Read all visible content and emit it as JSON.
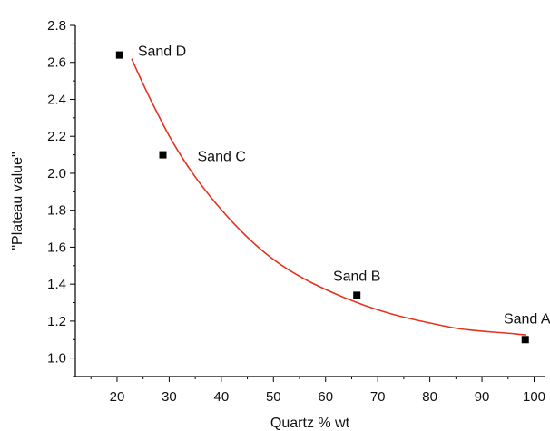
{
  "chart_data": {
    "type": "scatter",
    "title": "",
    "xlabel": "Quartz % wt",
    "ylabel": "\"Plateau value\"",
    "xlim": [
      12,
      102
    ],
    "ylim": [
      0.9,
      2.8
    ],
    "x_ticks": [
      20,
      30,
      40,
      50,
      60,
      70,
      80,
      90,
      100
    ],
    "y_ticks": [
      1.0,
      1.2,
      1.4,
      1.6,
      1.8,
      2.0,
      2.2,
      2.4,
      2.6,
      2.8
    ],
    "x_tick_labels": [
      "20",
      "30",
      "40",
      "50",
      "60",
      "70",
      "80",
      "90",
      "100"
    ],
    "y_tick_labels": [
      "1.0",
      "1.2",
      "1.4",
      "1.6",
      "1.8",
      "2.0",
      "2.2",
      "2.4",
      "2.6",
      "2.8"
    ],
    "grid": false,
    "legend": "none",
    "points": [
      {
        "label": "Sand D",
        "x": 20.5,
        "y": 2.64
      },
      {
        "label": "Sand C",
        "x": 28.8,
        "y": 2.1
      },
      {
        "label": "Sand B",
        "x": 66.0,
        "y": 1.34
      },
      {
        "label": "Sand A",
        "x": 98.3,
        "y": 1.1
      }
    ],
    "fit_curve": {
      "color": "#e8321e",
      "points": [
        [
          22.8,
          2.62
        ],
        [
          25,
          2.48
        ],
        [
          28,
          2.31
        ],
        [
          30,
          2.2
        ],
        [
          33,
          2.06
        ],
        [
          36,
          1.94
        ],
        [
          40,
          1.8
        ],
        [
          45,
          1.65
        ],
        [
          50,
          1.53
        ],
        [
          55,
          1.44
        ],
        [
          60,
          1.37
        ],
        [
          65,
          1.31
        ],
        [
          70,
          1.26
        ],
        [
          75,
          1.22
        ],
        [
          80,
          1.19
        ],
        [
          85,
          1.16
        ],
        [
          90,
          1.145
        ],
        [
          95,
          1.135
        ],
        [
          98.5,
          1.125
        ]
      ]
    },
    "marker_color": "#000000"
  }
}
